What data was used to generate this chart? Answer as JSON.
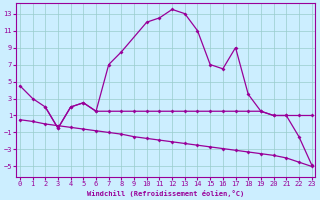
{
  "xlabel": "Windchill (Refroidissement éolien,°C)",
  "bg_color": "#cceeff",
  "line_color": "#990099",
  "grid_color": "#99cccc",
  "x_ticks": [
    0,
    1,
    2,
    3,
    4,
    5,
    6,
    7,
    8,
    9,
    10,
    11,
    12,
    13,
    14,
    15,
    16,
    17,
    18,
    19,
    20,
    21,
    22,
    23
  ],
  "y_ticks": [
    -5,
    -3,
    -1,
    1,
    3,
    5,
    7,
    9,
    11,
    13
  ],
  "ylim": [
    -6.2,
    14.2
  ],
  "xlim": [
    -0.3,
    23.3
  ],
  "curve1_x": [
    0,
    1,
    2,
    3,
    4,
    5,
    6,
    7,
    8,
    10,
    11,
    12,
    13,
    14,
    15,
    16,
    17,
    18,
    19,
    20,
    21,
    22,
    23
  ],
  "curve1_y": [
    4.5,
    3.0,
    2.0,
    -0.5,
    2.0,
    2.5,
    1.5,
    7.0,
    8.5,
    12.0,
    12.5,
    13.5,
    13.0,
    11.0,
    7.0,
    6.5,
    9.0,
    3.5,
    1.5,
    1.0,
    1.0,
    -1.5,
    -4.8
  ],
  "curve2_x": [
    2,
    3,
    4,
    5,
    6,
    7,
    8,
    9,
    10,
    11,
    12,
    13,
    14,
    15,
    16,
    17,
    18,
    19,
    20,
    21,
    22,
    23
  ],
  "curve2_y": [
    2.0,
    -0.5,
    2.0,
    2.5,
    1.5,
    1.5,
    1.5,
    1.5,
    1.5,
    1.5,
    1.5,
    1.5,
    1.5,
    1.5,
    1.5,
    1.5,
    1.5,
    1.5,
    1.0,
    1.0,
    1.0,
    1.0
  ],
  "curve3_x": [
    0,
    1,
    2,
    3,
    4,
    5,
    6,
    7,
    8,
    9,
    10,
    11,
    12,
    13,
    14,
    15,
    16,
    17,
    18,
    19,
    20,
    21,
    22,
    23
  ],
  "curve3_y": [
    0.5,
    0.3,
    0.0,
    -0.2,
    -0.4,
    -0.6,
    -0.8,
    -1.0,
    -1.2,
    -1.5,
    -1.7,
    -1.9,
    -2.1,
    -2.3,
    -2.5,
    -2.7,
    -2.9,
    -3.1,
    -3.3,
    -3.5,
    -3.7,
    -4.0,
    -4.5,
    -5.0
  ]
}
